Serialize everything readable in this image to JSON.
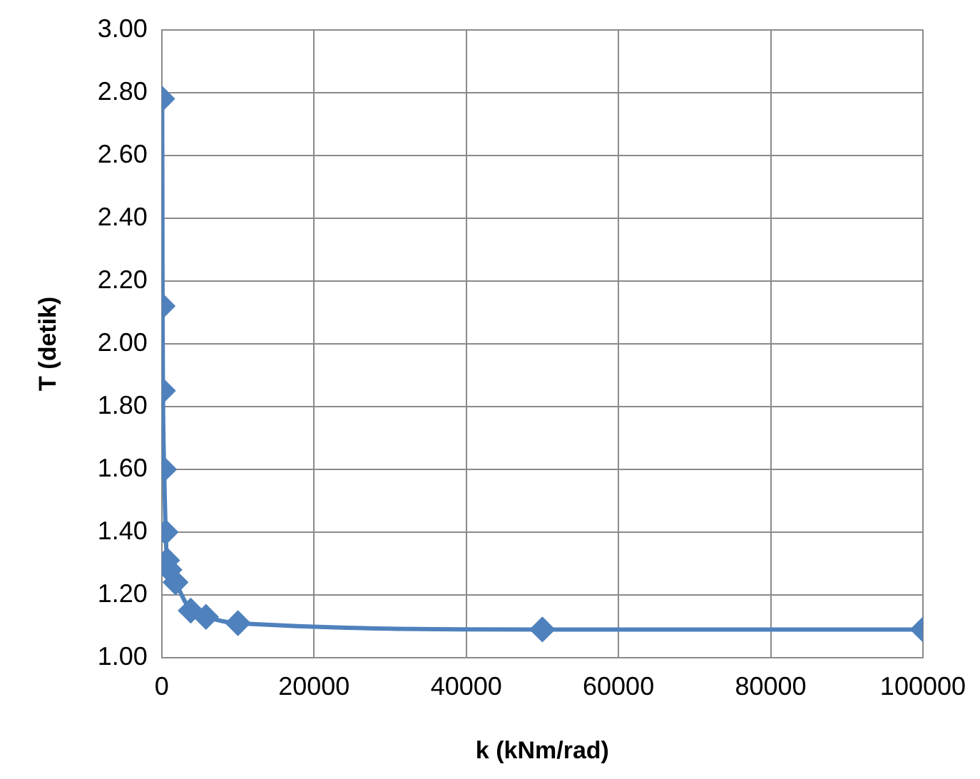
{
  "chart_data": {
    "type": "line",
    "xlabel": "k (kNm/rad)",
    "ylabel": "T (detik)",
    "series": [
      {
        "color": "#4f81bd",
        "x": [
          50,
          100,
          150,
          300,
          500,
          700,
          1000,
          1800,
          3800,
          5800,
          10000,
          50000,
          100000
        ],
        "values": [
          2.78,
          2.12,
          1.85,
          1.6,
          1.4,
          1.31,
          1.28,
          1.24,
          1.15,
          1.13,
          1.11,
          1.09,
          1.09
        ]
      }
    ],
    "xlim": [
      0,
      100000
    ],
    "xticks": [
      0,
      20000,
      40000,
      60000,
      80000,
      100000
    ],
    "ylim": [
      1,
      3
    ],
    "yticks": [
      {
        "value": 1,
        "label": "1.00"
      },
      {
        "value": 1.2,
        "label": "1.20"
      },
      {
        "value": 1.4,
        "label": "1.40"
      },
      {
        "value": 1.6,
        "label": "1.60"
      },
      {
        "value": 1.8,
        "label": "1.80"
      },
      {
        "value": 2,
        "label": "2.00"
      },
      {
        "value": 2.2,
        "label": "2.20"
      },
      {
        "value": 2.4,
        "label": "2.40"
      },
      {
        "value": 2.6,
        "label": "2.60"
      },
      {
        "value": 2.8,
        "label": "2.80"
      },
      {
        "value": 3,
        "label": "3.00"
      }
    ],
    "grid": true,
    "legend": false,
    "marker": "diamond",
    "line_style": "solid"
  }
}
